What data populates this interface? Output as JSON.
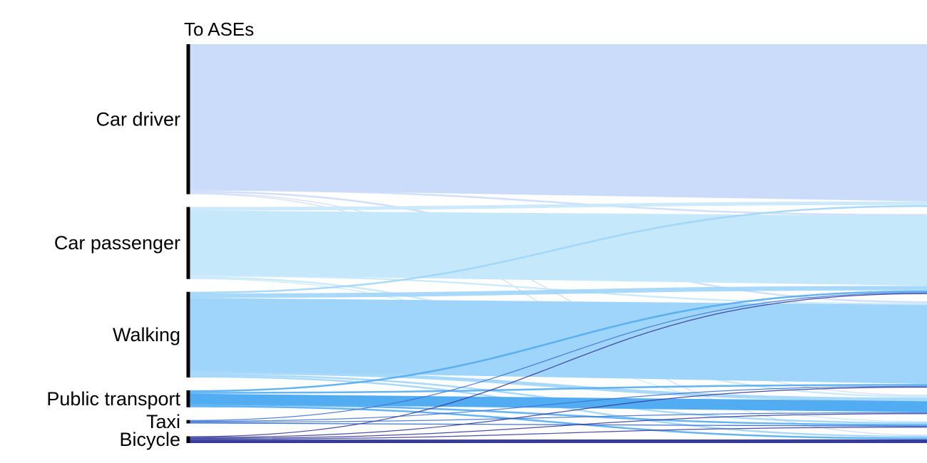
{
  "chart_data": {
    "type": "sankey",
    "title": "To ASEs",
    "nodes": [
      {
        "name": "Car driver",
        "color": "#cbdcfb"
      },
      {
        "name": "Car passenger",
        "color": "#c6e8fb"
      },
      {
        "name": "Walking",
        "color": "#9fd5fa"
      },
      {
        "name": "Public transport",
        "color": "#52acf1"
      },
      {
        "name": "Taxi",
        "color": "#3e74d6"
      },
      {
        "name": "Bicycle",
        "color": "#373b9a"
      }
    ],
    "flows": [
      {
        "source": "Car driver",
        "target": "Car driver",
        "value": 171
      },
      {
        "source": "Car driver",
        "target": "Car passenger",
        "value": 2
      },
      {
        "source": "Car driver",
        "target": "Walking",
        "value": 2
      },
      {
        "source": "Car driver",
        "target": "Public transport",
        "value": 1
      },
      {
        "source": "Car driver",
        "target": "Bicycle",
        "value": 1
      },
      {
        "source": "Car passenger",
        "target": "Car driver",
        "value": 4
      },
      {
        "source": "Car passenger",
        "target": "Car passenger",
        "value": 76
      },
      {
        "source": "Car passenger",
        "target": "Walking",
        "value": 2
      },
      {
        "source": "Car passenger",
        "target": "Public transport",
        "value": 2
      },
      {
        "source": "Car passenger",
        "target": "Taxi",
        "value": 1
      },
      {
        "source": "Walking",
        "target": "Car driver",
        "value": 2
      },
      {
        "source": "Walking",
        "target": "Car passenger",
        "value": 5
      },
      {
        "source": "Walking",
        "target": "Walking",
        "value": 86
      },
      {
        "source": "Walking",
        "target": "Public transport",
        "value": 4
      },
      {
        "source": "Walking",
        "target": "Taxi",
        "value": 2
      },
      {
        "source": "Walking",
        "target": "Bicycle",
        "value": 2
      },
      {
        "source": "Public transport",
        "target": "Car passenger",
        "value": 2
      },
      {
        "source": "Public transport",
        "target": "Walking",
        "value": 2
      },
      {
        "source": "Public transport",
        "target": "Public transport",
        "value": 12
      },
      {
        "source": "Public transport",
        "target": "Taxi",
        "value": 2
      },
      {
        "source": "Public transport",
        "target": "Bicycle",
        "value": 2
      },
      {
        "source": "Taxi",
        "target": "Car passenger",
        "value": 1
      },
      {
        "source": "Taxi",
        "target": "Walking",
        "value": 1
      },
      {
        "source": "Taxi",
        "target": "Public transport",
        "value": 1
      },
      {
        "source": "Taxi",
        "target": "Taxi",
        "value": 1
      },
      {
        "source": "Bicycle",
        "target": "Car passenger",
        "value": 1
      },
      {
        "source": "Bicycle",
        "target": "Walking",
        "value": 1
      },
      {
        "source": "Bicycle",
        "target": "Public transport",
        "value": 1
      },
      {
        "source": "Bicycle",
        "target": "Taxi",
        "value": 1
      },
      {
        "source": "Bicycle",
        "target": "Bicycle",
        "value": 4
      }
    ]
  }
}
